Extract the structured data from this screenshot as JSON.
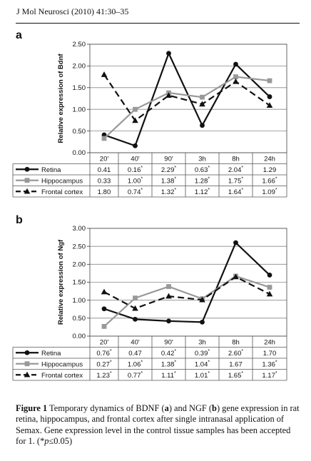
{
  "journal_header": "J Mol Neurosci (2010) 41:30–35",
  "caption": {
    "label": "Figure 1",
    "text_1": " Temporary dynamics of BDNF (",
    "a": "a",
    "text_2": ") and NGF (",
    "b": "b",
    "text_3": ") gene expression in rat retina, hippocampus, and frontal cortex after single intranasal application of Semax. Gene expression level in the control tissue samples has been accepted for 1. (",
    "star": "*",
    "p": "p",
    "text_4": "≤0.05)"
  },
  "chart_data": [
    {
      "panel": "a",
      "type": "line",
      "ylabel": "Relative expression of Bdnf",
      "ylim": [
        0,
        2.5
      ],
      "yticks": [
        "0.00",
        "0.50",
        "1.00",
        "1.50",
        "2.00",
        "2.50"
      ],
      "categories": [
        "20'",
        "40'",
        "90'",
        "3h",
        "8h",
        "24h"
      ],
      "grid": "horizontal",
      "series": [
        {
          "name": "Retina",
          "color": "#111111",
          "marker": "circle",
          "dash": "solid",
          "values": [
            0.41,
            0.16,
            2.29,
            0.63,
            2.04,
            1.29
          ],
          "labels": [
            "0.41",
            "0.16*",
            "2.29*",
            "0.63*",
            "2.04*",
            "1.29"
          ]
        },
        {
          "name": "Hippocampus",
          "color": "#999999",
          "marker": "square",
          "dash": "solid",
          "values": [
            0.33,
            1.0,
            1.38,
            1.28,
            1.75,
            1.66
          ],
          "labels": [
            "0.33",
            "1.00*",
            "1.38*",
            "1.28*",
            "1.75*",
            "1.66*"
          ]
        },
        {
          "name": "Frontal cortex",
          "color": "#111111",
          "marker": "triangle",
          "dash": "dashed",
          "values": [
            1.8,
            0.74,
            1.32,
            1.12,
            1.64,
            1.09
          ],
          "labels": [
            "1.80",
            "0.74*",
            "1.32*",
            "1.12*",
            "1.64*",
            "1.09*"
          ]
        }
      ]
    },
    {
      "panel": "b",
      "type": "line",
      "ylabel": "Relative expression of Ngf",
      "ylim": [
        0,
        3
      ],
      "yticks": [
        "0.00",
        "0.50",
        "1.00",
        "1.50",
        "2.00",
        "2.50",
        "3.00"
      ],
      "categories": [
        "20'",
        "40'",
        "90'",
        "3h",
        "8h",
        "24h"
      ],
      "grid": "horizontal",
      "series": [
        {
          "name": "Retina",
          "color": "#111111",
          "marker": "circle",
          "dash": "solid",
          "values": [
            0.76,
            0.47,
            0.42,
            0.39,
            2.6,
            1.7
          ],
          "labels": [
            "0.76*",
            "0.47",
            "0.42*",
            "0.39*",
            "2.60*",
            "1.70"
          ]
        },
        {
          "name": "Hippocampus",
          "color": "#999999",
          "marker": "square",
          "dash": "solid",
          "values": [
            0.27,
            1.06,
            1.38,
            1.04,
            1.67,
            1.36
          ],
          "labels": [
            "0.27*",
            "1.06*",
            "1.38*",
            "1.04*",
            "1.67",
            "1.36*"
          ]
        },
        {
          "name": "Frontal cortex",
          "color": "#111111",
          "marker": "triangle",
          "dash": "dashed",
          "values": [
            1.23,
            0.77,
            1.11,
            1.01,
            1.65,
            1.17
          ],
          "labels": [
            "1.23*",
            "0.77*",
            "1.11*",
            "1.01*",
            "1.65*",
            "1.17*"
          ]
        }
      ]
    }
  ]
}
